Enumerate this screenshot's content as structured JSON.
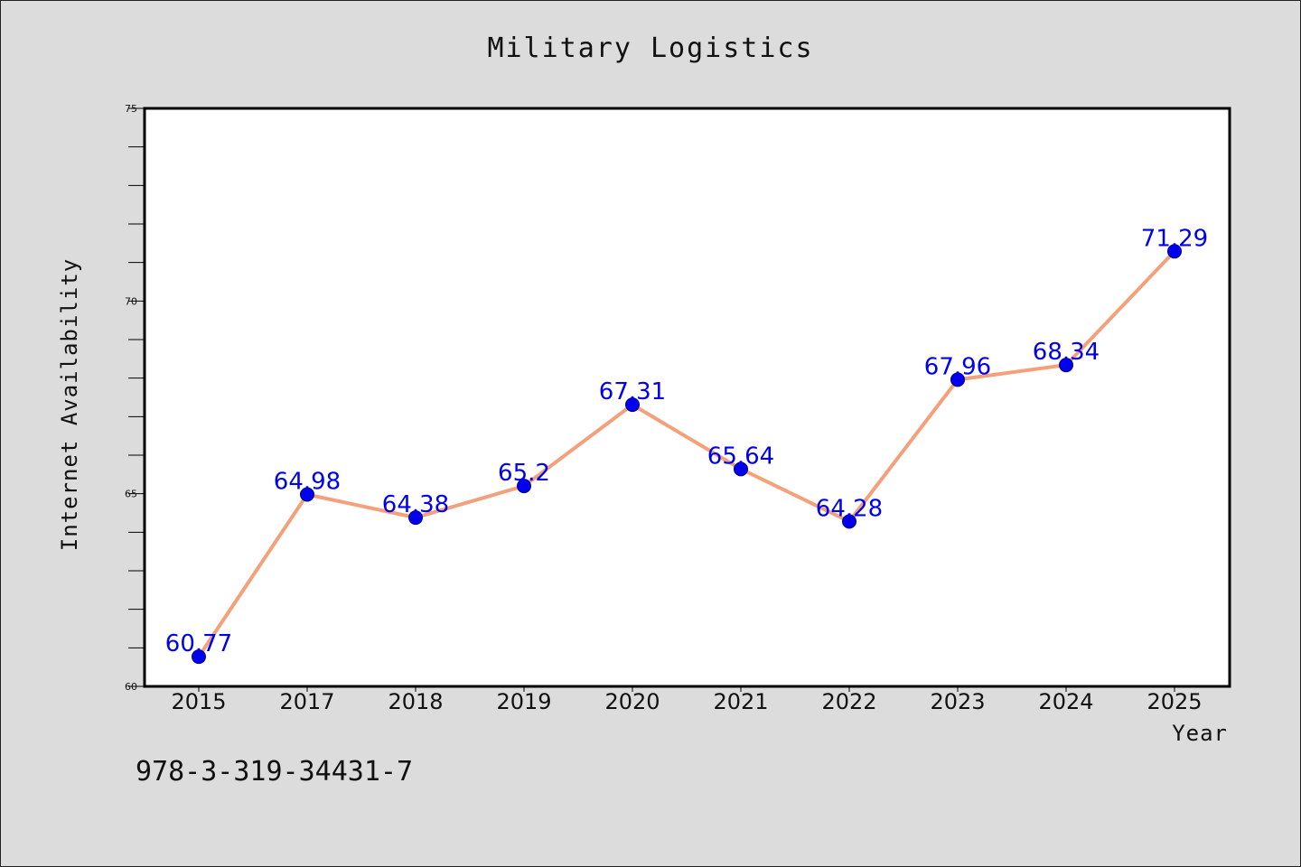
{
  "chart_data": {
    "type": "line",
    "title": "Military Logistics",
    "xlabel": "Year",
    "ylabel": "Internet Availability",
    "categories": [
      "2015",
      "2017",
      "2018",
      "2019",
      "2020",
      "2021",
      "2022",
      "2023",
      "2024",
      "2025"
    ],
    "series": [
      {
        "values": [
          60.77,
          64.98,
          64.38,
          65.2,
          67.31,
          65.64,
          64.28,
          67.96,
          68.34,
          71.29
        ]
      }
    ],
    "data_labels": [
      "60.77",
      "64.98",
      "64.38",
      "65.2",
      "67.31",
      "65.64",
      "64.28",
      "67.96",
      "68.34",
      "71.29"
    ],
    "ylim": [
      60,
      75
    ],
    "y_ticks": [
      "60",
      "65",
      "70",
      "75"
    ],
    "y_minor_step": 1,
    "grid": false,
    "legend": "none",
    "colors": {
      "line": "#f4a07a",
      "marker": "#0000ee",
      "marker_edge": "#000080",
      "label": "#0000ee",
      "background": "#dcdcdc",
      "plot_background": "#ffffff"
    }
  },
  "footnote": "978-3-319-34431-7"
}
